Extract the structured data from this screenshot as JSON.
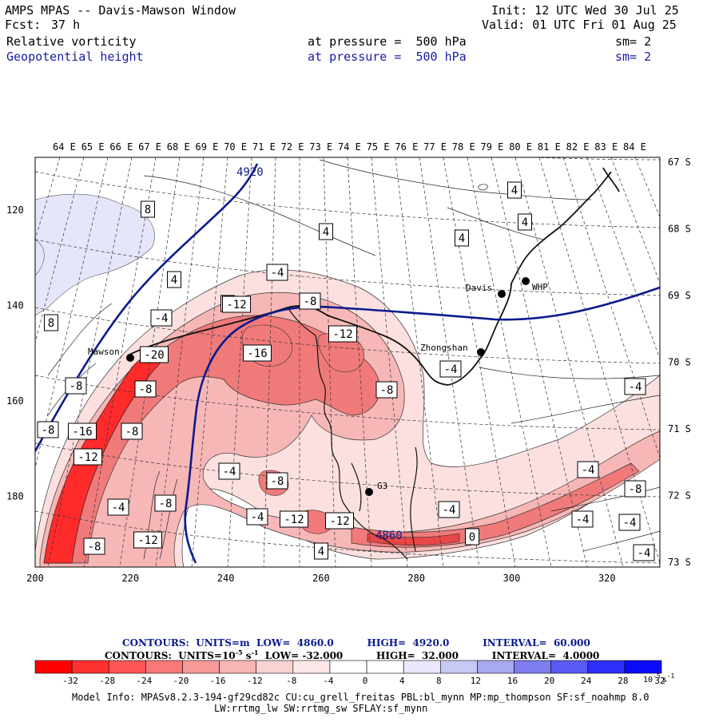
{
  "header": {
    "title": "AMPS MPAS -- Davis-Mawson Window",
    "fcst_label": "Fcst:",
    "fcst_value": "37 h",
    "init": "Init: 12 UTC Wed 30 Jul 25",
    "valid": "Valid: 01 UTC Fri 01 Aug 25",
    "field1_name": "Relative vorticity",
    "field1_level": "at pressure =  500 hPa",
    "field1_sm": "sm= 2",
    "field2_name": "Geopotential height",
    "field2_level": "at pressure =  500 hPa",
    "field2_sm": "sm= 2"
  },
  "map": {
    "top_lon_labels": [
      "64 E",
      "65 E",
      "66 E",
      "67 E",
      "68 E",
      "69 E",
      "70 E",
      "71 E",
      "72 E",
      "73 E",
      "74 E",
      "75 E",
      "76 E",
      "77 E",
      "78 E",
      "79 E",
      "80 E",
      "81 E",
      "82 E",
      "83 E",
      "84 E"
    ],
    "right_lat_labels": [
      "67 S",
      "68 S",
      "69 S",
      "70 S",
      "71 S",
      "72 S",
      "73 S"
    ],
    "left_grid_labels": [
      "120",
      "140",
      "160",
      "180"
    ],
    "bottom_grid_labels": [
      "200",
      "220",
      "240",
      "260",
      "280",
      "300",
      "320"
    ],
    "stations": [
      {
        "name": "Davis"
      },
      {
        "name": "WHP"
      },
      {
        "name": "Zhongshan"
      },
      {
        "name": "Mawson"
      },
      {
        "name": "G3"
      }
    ],
    "height_contour_labels": [
      "4920",
      "4860"
    ],
    "vort_labels": [
      "8",
      "4",
      "4",
      "4",
      "4",
      "4",
      "-4",
      "8",
      "4",
      "-4",
      "-12",
      "-8",
      "-12",
      "-20",
      "-16",
      "-8",
      "-4",
      "-8",
      "-8",
      "-16",
      "-8",
      "-8",
      "-4",
      "-12",
      "-4",
      "-8",
      "-12",
      "-12",
      "-4",
      "-8",
      "-4",
      "-12",
      "-8",
      "4",
      "-4",
      "-4",
      "-8",
      "-4",
      "-4",
      "-4",
      "0"
    ],
    "colors": {
      "strong_neg": "#ff1a1a",
      "med_neg": "#f06464",
      "weak_neg": "#f4a0a0",
      "faint_neg": "#fce0e0",
      "pos_faint": "#e6e6fa",
      "height_line": "#0a1a8c"
    }
  },
  "info": {
    "contours1_label": "CONTOURS:",
    "contours1_units": "UNITS=m",
    "contours1_low": "LOW=",
    "contours1_low_val": "4860.0",
    "contours1_high": "HIGH=",
    "contours1_high_val": "4920.0",
    "contours1_interval": "INTERVAL=",
    "contours1_interval_val": "60.000",
    "contours2_label": "CONTOURS:",
    "contours2_units": "UNITS=10",
    "contours2_units_exp": "-5",
    "contours2_units_tail": "s",
    "contours2_units_tail_exp": "-1",
    "contours2_low": "LOW=",
    "contours2_low_val": "-32.000",
    "contours2_high": "HIGH=",
    "contours2_high_val": "32.000",
    "contours2_interval": "INTERVAL=",
    "contours2_interval_val": "4.0000"
  },
  "colorbar": {
    "colors": [
      "#ff0000",
      "#ff3030",
      "#ff5555",
      "#f87878",
      "#f89a9a",
      "#f8b6b6",
      "#fad2d2",
      "#fce8e8",
      "#ffffff",
      "#ffffff",
      "#e8e8fa",
      "#c8c8f5",
      "#a8a8f0",
      "#7e7ef0",
      "#5a5af5",
      "#2e2ef8",
      "#0a0aff"
    ],
    "labels": [
      "-32",
      "-28",
      "-24",
      "-20",
      "-16",
      "-12",
      "-8",
      "-4",
      "0",
      "4",
      "8",
      "12",
      "16",
      "20",
      "24",
      "28",
      "32"
    ],
    "unit_base": "10",
    "unit_exp": "-5",
    "unit_tail": "s",
    "unit_tail_exp": "-1"
  },
  "model_info": {
    "line1": "Model Info: MPASv8.2.3-194-gf29cd82c CU:cu_grell_freitas PBL:bl_mynn MP:mp_thompson SF:sf_noahmp 8.0",
    "line2": "LW:rrtmg_lw SW:rrtmg_sw SFLAY:sf_mynn"
  }
}
